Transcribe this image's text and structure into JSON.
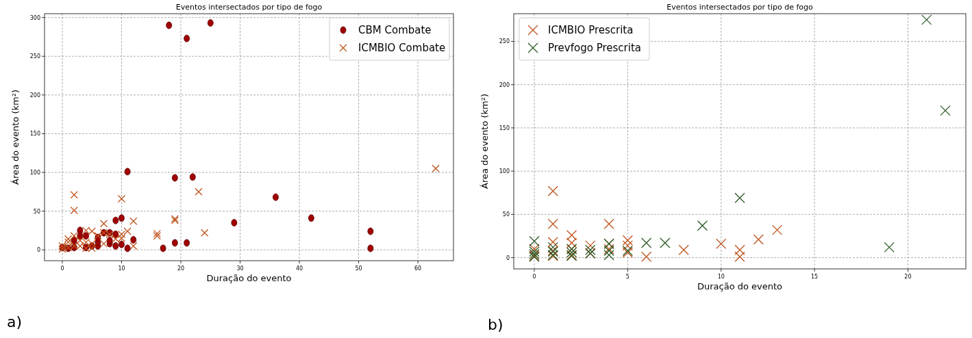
{
  "chart_data": [
    {
      "type": "scatter",
      "title": "Eventos intersectados por tipo de fogo",
      "xlabel": "Duração do evento",
      "ylabel": "Área do evento (km²)",
      "xlim": [
        -3,
        66
      ],
      "xticks": [
        0,
        10,
        20,
        30,
        40,
        50,
        60
      ],
      "ylim": [
        -14,
        305
      ],
      "yticks": [
        0,
        50,
        100,
        150,
        200,
        250,
        300
      ],
      "grid": true,
      "legend": "top right",
      "annotations": [
        "a)"
      ],
      "series": [
        {
          "name": "CBM Combate",
          "color": "#a00000",
          "marker": "circle",
          "x": [
            0,
            1,
            2,
            2,
            3,
            3,
            4,
            4,
            5,
            6,
            6,
            6,
            7,
            8,
            8,
            8,
            9,
            9,
            9,
            10,
            10,
            11,
            11,
            12,
            17,
            18,
            19,
            19,
            21,
            21,
            22,
            25,
            29,
            36,
            42,
            52,
            52
          ],
          "values": [
            3,
            2,
            3,
            12,
            18,
            25,
            3,
            18,
            5,
            5,
            10,
            16,
            22,
            8,
            12,
            22,
            5,
            20,
            38,
            7,
            41,
            2,
            101,
            13,
            2,
            290,
            9,
            93,
            9,
            273,
            94,
            293,
            35,
            68,
            41,
            2,
            24
          ]
        },
        {
          "name": "ICMBIO Combate",
          "color": "#c0541e",
          "marker": "cross",
          "x": [
            0,
            0,
            1,
            1,
            1,
            2,
            2,
            2,
            2,
            3,
            3,
            4,
            4,
            4,
            5,
            5,
            5,
            6,
            7,
            7,
            7,
            8,
            9,
            10,
            10,
            10,
            11,
            12,
            12,
            16,
            16,
            19,
            19,
            23,
            24,
            63
          ],
          "values": [
            1,
            5,
            3,
            10,
            14,
            5,
            18,
            51,
            71,
            5,
            12,
            2,
            10,
            25,
            2,
            8,
            24,
            18,
            8,
            22,
            34,
            20,
            14,
            15,
            20,
            66,
            24,
            5,
            37,
            18,
            21,
            38,
            40,
            75,
            22,
            105
          ]
        }
      ]
    },
    {
      "type": "scatter",
      "title": "Eventos intersectados por tipo de fogo",
      "xlabel": "Duração do evento",
      "ylabel": "Área do evento (km²)",
      "xlim": [
        -1.1,
        23.1
      ],
      "xticks": [
        0,
        5,
        10,
        15,
        20
      ],
      "ylim": [
        -13,
        282
      ],
      "yticks": [
        0,
        50,
        100,
        150,
        200,
        250
      ],
      "grid": true,
      "legend": "top left",
      "annotations": [
        "b)"
      ],
      "series": [
        {
          "name": "ICMBIO Prescrita",
          "color": "#c0541e",
          "marker": "cross",
          "x": [
            0,
            0,
            1,
            1,
            1,
            1,
            1,
            2,
            2,
            2,
            2,
            3,
            3,
            4,
            4,
            4,
            5,
            5,
            5,
            6,
            8,
            10,
            11,
            11,
            12,
            13
          ],
          "values": [
            2,
            10,
            2,
            8,
            18,
            39,
            77,
            3,
            10,
            17,
            26,
            5,
            14,
            10,
            16,
            39,
            6,
            14,
            20,
            1,
            9,
            16,
            1,
            9,
            21,
            32
          ]
        },
        {
          "name": "Prevfogo Prescrita",
          "color": "#2d5a27",
          "marker": "cross",
          "x": [
            0,
            0,
            0,
            0,
            1,
            1,
            1,
            2,
            2,
            2,
            3,
            3,
            4,
            4,
            4,
            5,
            6,
            7,
            9,
            11,
            19,
            21,
            22
          ],
          "values": [
            1,
            4,
            7,
            19,
            3,
            7,
            12,
            2,
            6,
            10,
            5,
            9,
            3,
            8,
            16,
            8,
            17,
            17,
            37,
            69,
            12,
            275,
            170
          ]
        }
      ]
    }
  ]
}
